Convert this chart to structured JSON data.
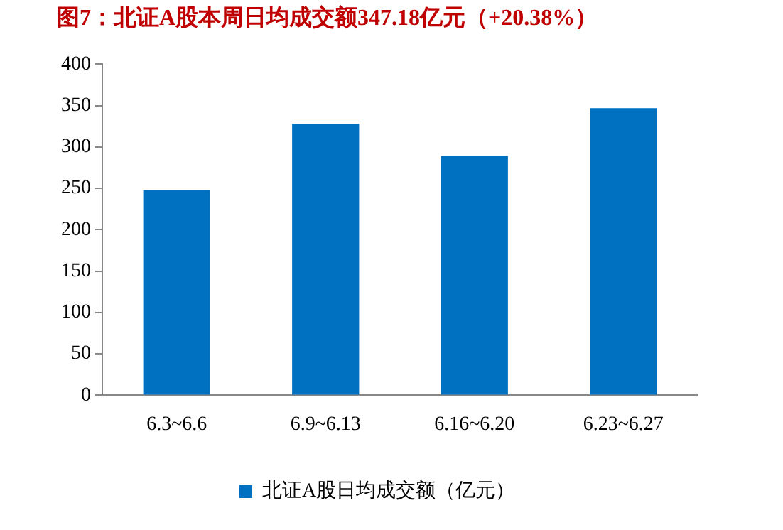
{
  "chart_data": {
    "type": "bar",
    "title": "图7：北证A股本周日均成交额347.18亿元（+20.38%）",
    "categories": [
      "6.3~6.6",
      "6.9~6.13",
      "6.16~6.20",
      "6.23~6.27"
    ],
    "series": [
      {
        "name": "北证A股日均成交额（亿元）",
        "color": "#0070c0",
        "values": [
          248,
          328,
          289,
          347
        ]
      }
    ],
    "ylim": [
      0,
      400
    ],
    "yticks": [
      0,
      50,
      100,
      150,
      200,
      250,
      300,
      350,
      400
    ],
    "grid": false,
    "legend": "bottom"
  }
}
